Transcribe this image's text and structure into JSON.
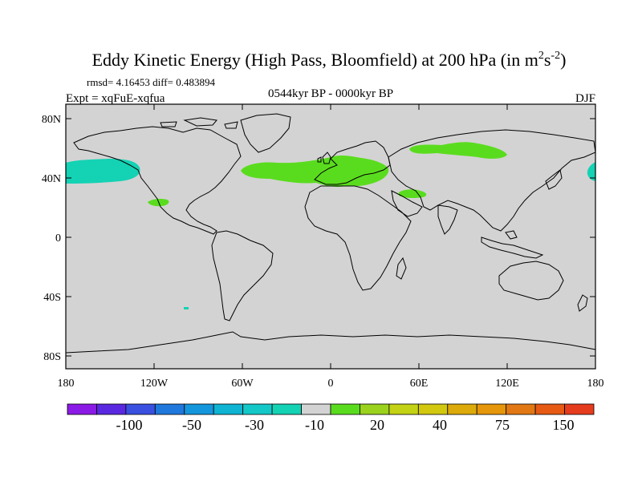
{
  "title": {
    "main": "Eddy Kinetic Energy (High Pass, Bloomfield) at 200 hPa (in m",
    "unit_m_exp": "2",
    "unit_s": "s",
    "unit_s_exp": "-2",
    "close": ")"
  },
  "stats": {
    "rmsd_diff": "rmsd= 4.16453 diff= 0.483894",
    "expt": "Expt = xqFuE-xqfua",
    "period": "0544kyr BP - 0000kyr BP",
    "season": "DJF"
  },
  "map": {
    "land_sea_fill": "#d3d3d3",
    "y_ticks": [
      "80N",
      "40N",
      "0",
      "40S",
      "80S"
    ],
    "x_ticks": [
      "180",
      "120W",
      "60W",
      "0",
      "60E",
      "120E",
      "180"
    ]
  },
  "colorbar": {
    "colors": [
      "#8c1ae6",
      "#5a28e0",
      "#3a50e0",
      "#1f78dc",
      "#1496dc",
      "#0fb4d2",
      "#14c8c8",
      "#14d2b4",
      "#d3d3d3",
      "#5adc1e",
      "#9bd21e",
      "#c3d214",
      "#d2c80f",
      "#dcaa0a",
      "#e6960a",
      "#e17814",
      "#e65a14",
      "#e63c1e"
    ],
    "labels": [
      "-100",
      "-50",
      "-30",
      "-10",
      "20",
      "40",
      "75",
      "150"
    ]
  },
  "anomaly_colors": {
    "positive": "#5adc1e",
    "negative": "#14d2b4"
  }
}
